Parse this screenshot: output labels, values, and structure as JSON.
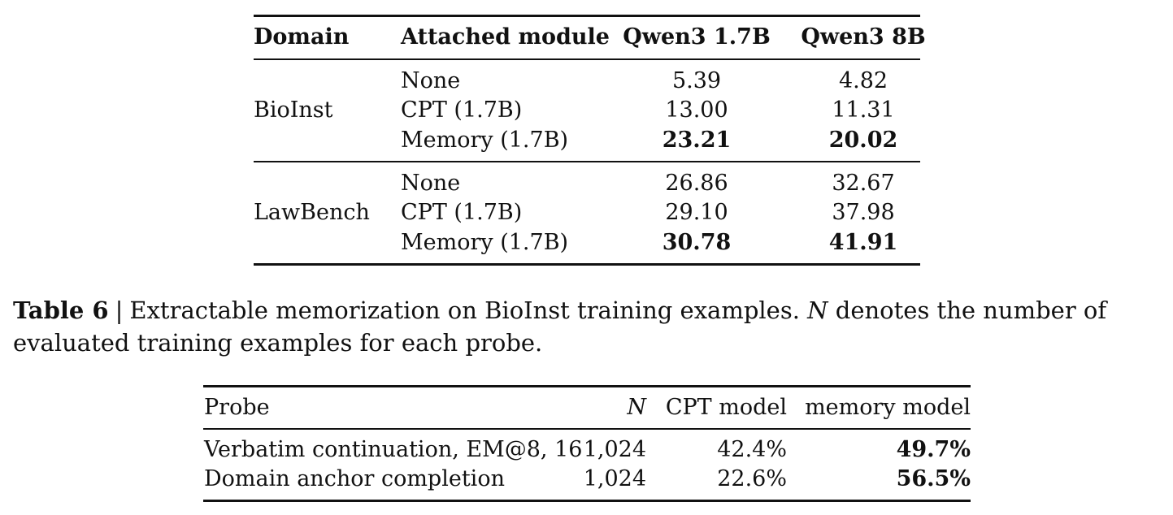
{
  "table1": {
    "headers": [
      "Domain",
      "Attached module",
      "Qwen3 1.7B",
      "Qwen3 8B"
    ],
    "groups": [
      {
        "domain": "BioInst",
        "rows": [
          {
            "module": "None",
            "q17": "5.39",
            "q8": "4.82"
          },
          {
            "module": "CPT (1.7B)",
            "q17": "13.00",
            "q8": "11.31"
          },
          {
            "module": "Memory (1.7B)",
            "q17": "23.21",
            "q8": "20.02"
          }
        ]
      },
      {
        "domain": "LawBench",
        "rows": [
          {
            "module": "None",
            "q17": "26.86",
            "q8": "32.67"
          },
          {
            "module": "CPT (1.7B)",
            "q17": "29.10",
            "q8": "37.98"
          },
          {
            "module": "Memory (1.7B)",
            "q17": "30.78",
            "q8": "41.91"
          }
        ]
      }
    ]
  },
  "caption": {
    "label": "Table 6",
    "separator": "|",
    "text_before_n": "Extractable memorization on BioInst training examples.",
    "n_symbol": "N",
    "text_after_n": "denotes the number of evaluated training examples for each probe."
  },
  "table2": {
    "headers": [
      "Probe",
      "N",
      "CPT model",
      "memory model"
    ],
    "rows": [
      {
        "probe": "Verbatim continuation, EM@8, 16",
        "n": "1,024",
        "cpt": "42.4%",
        "memory": "49.7%"
      },
      {
        "probe": "Domain anchor completion",
        "n": "1,024",
        "cpt": "22.6%",
        "memory": "56.5%"
      }
    ]
  }
}
